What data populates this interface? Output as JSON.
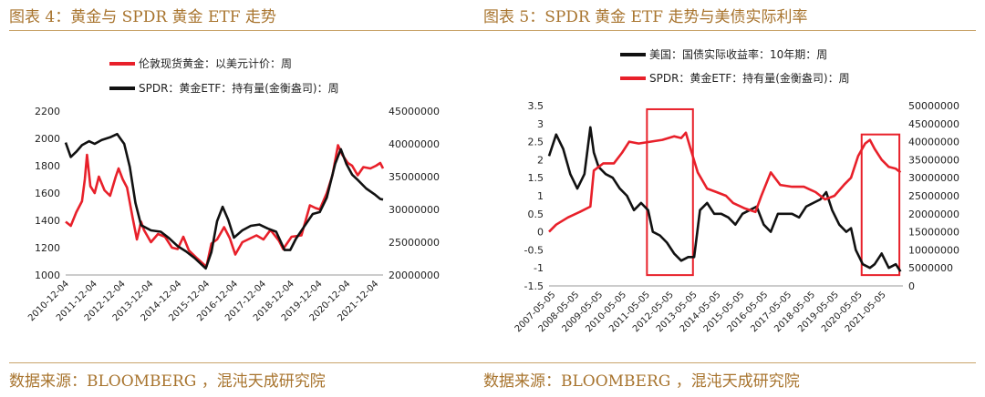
{
  "left": {
    "title": "图表 4：黄金与 SPDR 黄金 ETF 走势",
    "source": "数据来源：BLOOMBERG ，混沌天成研究院"
  },
  "right": {
    "title": "图表 5：SPDR 黄金 ETF 走势与美债实际利率",
    "source": "数据来源：BLOOMBERG ，混沌天成研究院"
  },
  "colors": {
    "gold": "#a8742e",
    "red": "#e8202a",
    "black": "#111111"
  },
  "chart_data": [
    {
      "type": "line",
      "legend_position": "top",
      "grid": false,
      "x_ticks": [
        "2010-12-04",
        "2011-12-04",
        "2012-12-04",
        "2013-12-04",
        "2014-12-04",
        "2015-12-04",
        "2016-12-04",
        "2017-12-04",
        "2018-12-04",
        "2019-12-04",
        "2020-12-04",
        "2021-12-04"
      ],
      "x_range": [
        2010.92,
        2022.2
      ],
      "yleft": {
        "range": [
          1000,
          2200
        ],
        "ticks": [
          "1000",
          "1200",
          "1400",
          "1600",
          "1800",
          "2000",
          "2200"
        ]
      },
      "yright": {
        "range": [
          20000000,
          45000000
        ],
        "ticks": [
          "20000000",
          "25000000",
          "30000000",
          "35000000",
          "40000000",
          "45000000"
        ]
      },
      "series": [
        {
          "name": "伦敦现货黄金：以美元计价：周",
          "color": "#e8202a",
          "axis": "left",
          "x": [
            2010.92,
            2011.1,
            2011.3,
            2011.5,
            2011.6,
            2011.68,
            2011.8,
            2011.95,
            2012.1,
            2012.3,
            2012.5,
            2012.7,
            2012.8,
            2012.95,
            2013.1,
            2013.3,
            2013.45,
            2013.6,
            2013.7,
            2013.95,
            2014.2,
            2014.45,
            2014.7,
            2014.9,
            2015.1,
            2015.3,
            2015.6,
            2015.92,
            2016.1,
            2016.3,
            2016.55,
            2016.75,
            2016.95,
            2017.2,
            2017.5,
            2017.7,
            2017.95,
            2018.2,
            2018.5,
            2018.65,
            2018.95,
            2019.3,
            2019.6,
            2019.8,
            2019.95,
            2020.2,
            2020.4,
            2020.6,
            2020.75,
            2020.95,
            2021.1,
            2021.3,
            2021.5,
            2021.75,
            2021.95,
            2022.1,
            2022.2
          ],
          "y": [
            1390,
            1360,
            1460,
            1540,
            1700,
            1880,
            1650,
            1600,
            1720,
            1620,
            1580,
            1720,
            1780,
            1700,
            1640,
            1420,
            1260,
            1390,
            1330,
            1240,
            1300,
            1280,
            1200,
            1190,
            1280,
            1180,
            1120,
            1060,
            1230,
            1260,
            1350,
            1270,
            1150,
            1240,
            1270,
            1290,
            1260,
            1330,
            1250,
            1190,
            1280,
            1290,
            1510,
            1490,
            1480,
            1600,
            1730,
            1950,
            1880,
            1820,
            1800,
            1730,
            1790,
            1780,
            1800,
            1820,
            1780
          ]
        },
        {
          "name": "SPDR：黄金ETF：持有量(金衡盎司)：周",
          "color": "#111111",
          "axis": "right",
          "x": [
            2010.92,
            2011.1,
            2011.3,
            2011.5,
            2011.75,
            2011.95,
            2012.2,
            2012.5,
            2012.75,
            2012.9,
            2013.0,
            2013.2,
            2013.4,
            2013.6,
            2013.95,
            2014.3,
            2014.6,
            2014.9,
            2015.2,
            2015.5,
            2015.9,
            2016.1,
            2016.3,
            2016.5,
            2016.7,
            2016.9,
            2017.2,
            2017.5,
            2017.8,
            2018.1,
            2018.4,
            2018.7,
            2018.9,
            2019.1,
            2019.4,
            2019.7,
            2019.95,
            2020.2,
            2020.5,
            2020.7,
            2020.9,
            2021.1,
            2021.3,
            2021.6,
            2021.9,
            2022.1,
            2022.2
          ],
          "y": [
            40200000,
            38000000,
            38800000,
            39800000,
            40400000,
            40000000,
            40600000,
            41000000,
            41500000,
            40600000,
            40000000,
            36500000,
            31000000,
            27600000,
            26800000,
            26600000,
            25600000,
            24400000,
            23600000,
            22600000,
            21000000,
            23500000,
            28200000,
            30400000,
            28400000,
            25700000,
            26800000,
            27500000,
            27700000,
            27100000,
            26600000,
            23800000,
            23800000,
            25500000,
            27400000,
            29300000,
            29600000,
            31800000,
            37000000,
            39200000,
            36900000,
            35300000,
            34500000,
            33200000,
            32300000,
            31600000,
            31500000
          ]
        }
      ]
    },
    {
      "type": "line",
      "legend_position": "top",
      "grid": false,
      "x_ticks": [
        "2007-05-05",
        "2008-05-05",
        "2009-05-05",
        "2010-05-05",
        "2011-05-05",
        "2012-05-05",
        "2013-05-05",
        "2014-05-05",
        "2015-05-05",
        "2016-05-05",
        "2017-05-05",
        "2018-05-05",
        "2019-05-05",
        "2020-05-05",
        "2021-05-05"
      ],
      "x_range": [
        2007.2,
        2022.2
      ],
      "yleft": {
        "range": [
          -1.5,
          3.5
        ],
        "ticks": [
          "-1.5",
          "-1",
          "-0.5",
          "0",
          "0.5",
          "1",
          "1.5",
          "2",
          "2.5",
          "3",
          "3.5"
        ]
      },
      "yright": {
        "range": [
          0,
          50000000
        ],
        "ticks": [
          "0",
          "5000000",
          "10000000",
          "15000000",
          "20000000",
          "25000000",
          "30000000",
          "35000000",
          "40000000",
          "45000000",
          "50000000"
        ]
      },
      "series": [
        {
          "name": "美国：国债实际收益率：10年期：周",
          "color": "#111111",
          "axis": "left",
          "x": [
            2007.2,
            2007.5,
            2007.8,
            2008.1,
            2008.4,
            2008.7,
            2008.95,
            2009.1,
            2009.3,
            2009.6,
            2009.9,
            2010.2,
            2010.5,
            2010.8,
            2011.1,
            2011.4,
            2011.6,
            2011.9,
            2012.2,
            2012.5,
            2012.8,
            2013.1,
            2013.35,
            2013.6,
            2013.9,
            2014.2,
            2014.5,
            2014.8,
            2015.1,
            2015.4,
            2015.7,
            2016.0,
            2016.3,
            2016.6,
            2016.9,
            2017.2,
            2017.5,
            2017.8,
            2018.1,
            2018.4,
            2018.7,
            2018.95,
            2019.2,
            2019.5,
            2019.8,
            2020.0,
            2020.2,
            2020.5,
            2020.8,
            2021.0,
            2021.3,
            2021.6,
            2021.9,
            2022.1
          ],
          "y": [
            2.1,
            2.7,
            2.3,
            1.6,
            1.2,
            1.6,
            2.9,
            2.2,
            1.8,
            1.6,
            1.5,
            1.2,
            1.0,
            0.6,
            0.8,
            0.6,
            0.0,
            -0.1,
            -0.3,
            -0.6,
            -0.8,
            -0.7,
            -0.7,
            0.6,
            0.8,
            0.5,
            0.5,
            0.4,
            0.2,
            0.5,
            0.6,
            0.7,
            0.2,
            0.0,
            0.5,
            0.5,
            0.5,
            0.4,
            0.7,
            0.8,
            0.9,
            1.1,
            0.6,
            0.2,
            0.0,
            0.1,
            -0.5,
            -0.9,
            -1.0,
            -0.9,
            -0.6,
            -1.0,
            -0.9,
            -1.1
          ]
        },
        {
          "name": "SPDR：黄金ETF：持有量(金衡盎司)：周",
          "color": "#e8202a",
          "axis": "right",
          "x": [
            2007.2,
            2007.5,
            2008.0,
            2008.5,
            2008.95,
            2009.1,
            2009.5,
            2009.95,
            2010.3,
            2010.6,
            2011.0,
            2011.5,
            2012.0,
            2012.5,
            2012.8,
            2013.0,
            2013.2,
            2013.5,
            2013.9,
            2014.3,
            2014.7,
            2015.0,
            2015.5,
            2015.95,
            2016.2,
            2016.6,
            2017.0,
            2017.5,
            2018.0,
            2018.5,
            2018.9,
            2019.3,
            2019.7,
            2020.0,
            2020.3,
            2020.6,
            2020.8,
            2021.0,
            2021.3,
            2021.6,
            2021.9,
            2022.1
          ],
          "y": [
            15000000,
            17000000,
            19000000,
            20500000,
            22000000,
            32000000,
            34000000,
            34000000,
            37000000,
            40000000,
            39500000,
            40000000,
            40500000,
            41500000,
            41000000,
            42500000,
            38000000,
            31500000,
            27000000,
            26000000,
            25000000,
            23000000,
            21500000,
            20500000,
            25000000,
            31500000,
            28000000,
            27500000,
            27500000,
            26000000,
            24000000,
            25000000,
            28000000,
            30000000,
            36000000,
            39500000,
            40500000,
            38000000,
            35000000,
            33000000,
            32500000,
            31500000
          ]
        }
      ],
      "highlight_boxes": [
        {
          "x_from": 2011.35,
          "x_to": 2013.3,
          "y_from": -1.2,
          "y_to": 3.4
        },
        {
          "x_from": 2020.45,
          "x_to": 2022.05,
          "y_from": -1.2,
          "y_to": 2.7
        }
      ]
    }
  ]
}
